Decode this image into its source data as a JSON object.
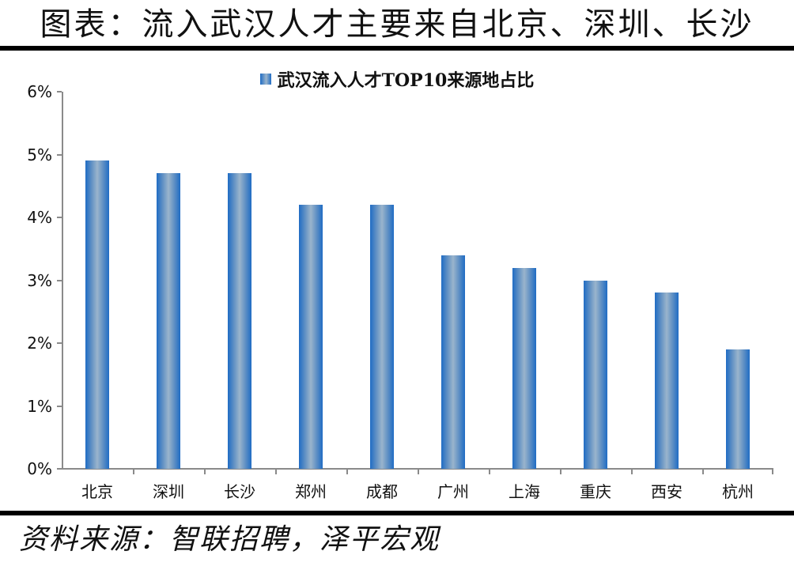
{
  "header": {
    "title": "图表：流入武汉人才主要来自北京、深圳、长沙"
  },
  "footer": {
    "source": "资料来源：智联招聘，泽平宏观"
  },
  "colors": {
    "bar_edge": "#1f6cc4",
    "bar_center": "#9ab4cc",
    "axis": "#8a8a8a",
    "rule": "#000000"
  },
  "chart_data": {
    "type": "bar",
    "title": "武汉流入人才TOP10来源地占比",
    "legend": [
      "武汉流入人才TOP10来源地占比"
    ],
    "legend_position": "top",
    "xlabel": "",
    "ylabel": "",
    "ylim": [
      0,
      6
    ],
    "y_unit": "%",
    "y_ticks": [
      "0%",
      "1%",
      "2%",
      "3%",
      "4%",
      "5%",
      "6%"
    ],
    "grid": false,
    "categories": [
      "北京",
      "深圳",
      "长沙",
      "郑州",
      "成都",
      "广州",
      "上海",
      "重庆",
      "西安",
      "杭州"
    ],
    "series": [
      {
        "name": "武汉流入人才TOP10来源地占比",
        "values": [
          4.9,
          4.7,
          4.7,
          4.2,
          4.2,
          3.4,
          3.2,
          3.0,
          2.8,
          1.9
        ]
      }
    ]
  }
}
